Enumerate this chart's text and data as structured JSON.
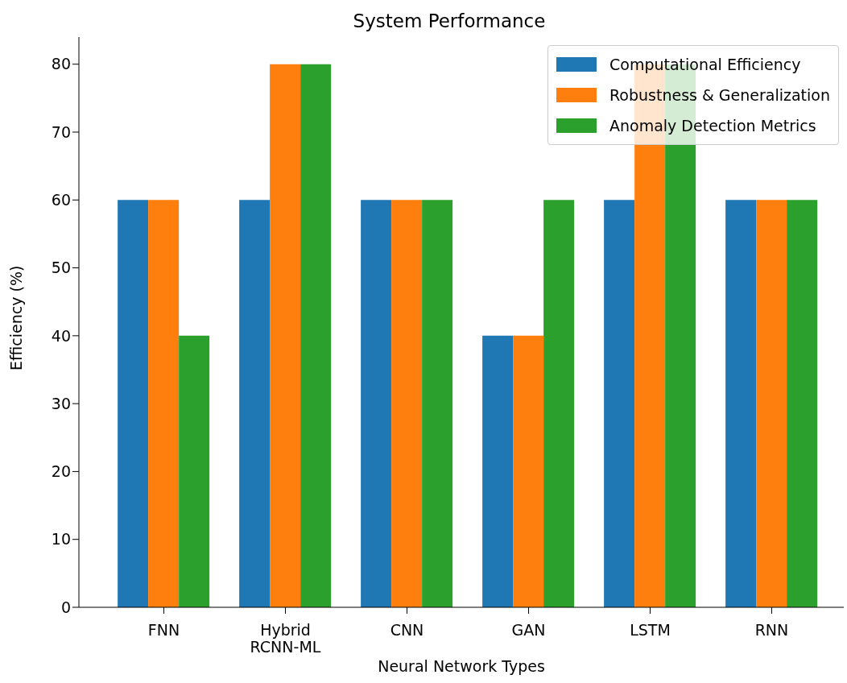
{
  "chart_data": {
    "type": "bar",
    "title": "System Performance",
    "xlabel": "Neural Network Types",
    "ylabel": "Efficiency (%)",
    "categories": [
      "FNN",
      "Hybrid RCNN-ML",
      "CNN",
      "GAN",
      "LSTM",
      "RNN"
    ],
    "series": [
      {
        "name": "Computational Efficiency",
        "color": "#1f77b4",
        "values": [
          60,
          60,
          60,
          40,
          60,
          60
        ]
      },
      {
        "name": "Robustness & Generalization",
        "color": "#ff7f0e",
        "values": [
          60,
          80,
          60,
          40,
          80,
          60
        ]
      },
      {
        "name": "Anomaly Detection Metrics",
        "color": "#2ca02c",
        "values": [
          40,
          80,
          60,
          60,
          80,
          60
        ]
      }
    ],
    "ylim": [
      0,
      84
    ],
    "yticks": [
      0,
      10,
      20,
      30,
      40,
      50,
      60,
      70,
      80
    ],
    "grid": false,
    "legend": "top right"
  }
}
